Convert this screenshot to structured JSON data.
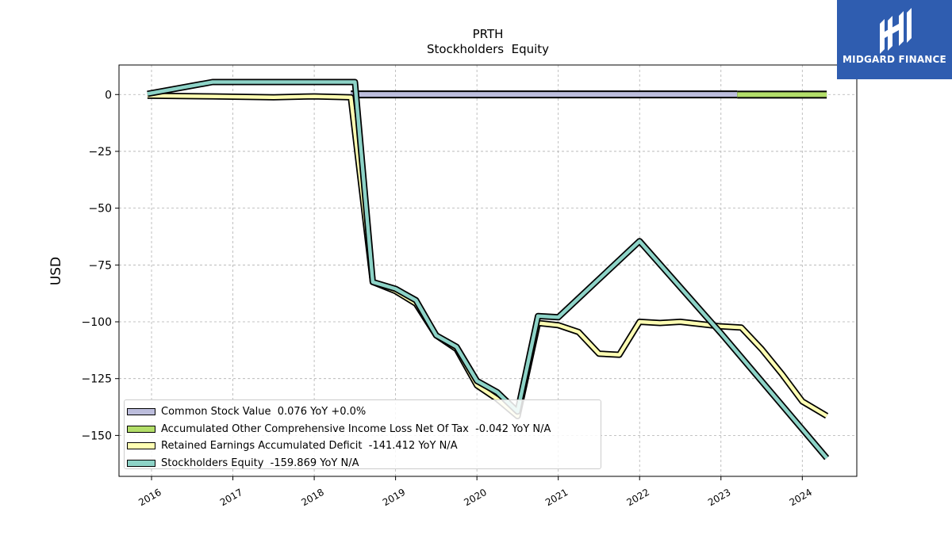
{
  "brand": {
    "name": "MIDGARD FINANCE",
    "color": "#2f5db0"
  },
  "chart_data": {
    "type": "line",
    "title": "PRTH",
    "subtitle": "Stockholders  Equity",
    "ylabel": "USD",
    "xlabel": "",
    "xlim": [
      2015.6,
      2024.67
    ],
    "ylim": [
      -168,
      13
    ],
    "x_ticks": [
      "2016",
      "2017",
      "2018",
      "2019",
      "2020",
      "2021",
      "2022",
      "2023",
      "2024"
    ],
    "y_ticks": [
      0,
      -25,
      -50,
      -75,
      -100,
      -125,
      -150
    ],
    "y_tick_labels": [
      "0",
      "−25",
      "−50",
      "−75",
      "−100",
      "−125",
      "−150"
    ],
    "grid": true,
    "legend_position": "lower-left",
    "series": [
      {
        "name": "Common Stock Value  0.076 YoY +0.0%",
        "kind": "bar-segment",
        "color": "#bcbddc",
        "points": [
          [
            2018.45,
            0.076
          ],
          [
            2023.2,
            0.076
          ]
        ]
      },
      {
        "name": "Accumulated Other Comprehensive Income Loss Net Of Tax  -0.042 YoY N/A",
        "kind": "bar-segment",
        "color": "#b3de69",
        "points": [
          [
            2023.2,
            -0.042
          ],
          [
            2024.3,
            -0.042
          ]
        ]
      },
      {
        "name": "Retained Earnings Accumulated Deficit  -141.412 YoY N/A",
        "kind": "line",
        "color": "#ffffb3",
        "points": [
          [
            2015.95,
            -0.5
          ],
          [
            2016.75,
            -0.8
          ],
          [
            2017.5,
            -1.2
          ],
          [
            2018.0,
            -0.8
          ],
          [
            2018.45,
            -1.2
          ],
          [
            2018.72,
            -82.5
          ],
          [
            2019.0,
            -86.5
          ],
          [
            2019.25,
            -92
          ],
          [
            2019.5,
            -106
          ],
          [
            2019.75,
            -112
          ],
          [
            2020.0,
            -128
          ],
          [
            2020.25,
            -134
          ],
          [
            2020.5,
            -141.5
          ],
          [
            2020.75,
            -100.5
          ],
          [
            2021.0,
            -101.5
          ],
          [
            2021.25,
            -104.5
          ],
          [
            2021.5,
            -114
          ],
          [
            2021.75,
            -114.5
          ],
          [
            2022.0,
            -100
          ],
          [
            2022.25,
            -100.5
          ],
          [
            2022.5,
            -100
          ],
          [
            2022.75,
            -101
          ],
          [
            2023.0,
            -102
          ],
          [
            2023.25,
            -102.5
          ],
          [
            2023.5,
            -112
          ],
          [
            2023.75,
            -123
          ],
          [
            2024.0,
            -135
          ],
          [
            2024.3,
            -141.4
          ]
        ]
      },
      {
        "name": "Stockholders Equity  -159.869 YoY N/A",
        "kind": "line",
        "color": "#8dd3c7",
        "points": [
          [
            2015.95,
            0.3
          ],
          [
            2016.75,
            5.5
          ],
          [
            2018.0,
            5.5
          ],
          [
            2018.5,
            5.5
          ],
          [
            2018.72,
            -82.5
          ],
          [
            2019.0,
            -85.5
          ],
          [
            2019.25,
            -90.5
          ],
          [
            2019.5,
            -106
          ],
          [
            2019.75,
            -111
          ],
          [
            2020.0,
            -126
          ],
          [
            2020.25,
            -131
          ],
          [
            2020.5,
            -139.5
          ],
          [
            2020.75,
            -97.5
          ],
          [
            2021.0,
            -98
          ],
          [
            2022.0,
            -64.5
          ],
          [
            2022.9,
            -101
          ],
          [
            2023.0,
            -105
          ],
          [
            2024.3,
            -159.9
          ]
        ]
      }
    ]
  }
}
